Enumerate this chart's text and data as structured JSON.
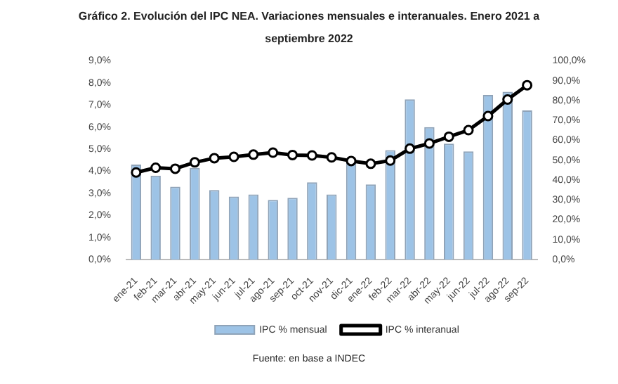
{
  "chart_data": {
    "type": "bar",
    "title": "Gráfico 2. Evolución del IPC NEA. Variaciones mensuales e interanuales. Enero 2021 a septiembre 2022",
    "categories": [
      "ene-21",
      "feb-21",
      "mar-21",
      "abr-21",
      "may-21",
      "jun-21",
      "jul-21",
      "ago-21",
      "sep-21",
      "oct-21",
      "nov-21",
      "dic-21",
      "ene-22",
      "feb-22",
      "mar-22",
      "abr-22",
      "may-22",
      "jun-22",
      "jul-22",
      "ago-22",
      "sep-22"
    ],
    "series": [
      {
        "name": "IPC % mensual",
        "color": "#9dc3e6",
        "values": [
          4.3,
          3.8,
          3.3,
          4.15,
          3.15,
          2.85,
          2.95,
          2.7,
          2.8,
          3.5,
          2.95,
          4.45,
          3.4,
          4.95,
          7.25,
          6.0,
          5.25,
          4.9,
          7.45,
          7.6,
          6.75
        ]
      },
      {
        "name": "IPC % interanual",
        "type": "line",
        "axis": "y2",
        "color": "#000000",
        "marker": "circle",
        "values": [
          43.8,
          46.2,
          45.7,
          48.9,
          51.0,
          51.7,
          52.8,
          53.8,
          52.6,
          52.4,
          51.4,
          49.6,
          48.2,
          49.8,
          55.8,
          58.4,
          61.8,
          65.1,
          72.2,
          80.5,
          87.7
        ]
      }
    ],
    "ylim": [
      0,
      9
    ],
    "yticks": [
      {
        "value": 0,
        "label": "0,0%"
      },
      {
        "value": 1,
        "label": "1,0%"
      },
      {
        "value": 2,
        "label": "2,0%"
      },
      {
        "value": 3,
        "label": "3,0%"
      },
      {
        "value": 4,
        "label": "4,0%"
      },
      {
        "value": 5,
        "label": "5,0%"
      },
      {
        "value": 6,
        "label": "6,0%"
      },
      {
        "value": 7,
        "label": "7,0%"
      },
      {
        "value": 8,
        "label": "8,0%"
      },
      {
        "value": 9,
        "label": "9,0%"
      }
    ],
    "y2lim": [
      0,
      100
    ],
    "y2ticks": [
      {
        "value": 0,
        "label": "0,0%"
      },
      {
        "value": 10,
        "label": "10,0%"
      },
      {
        "value": 20,
        "label": "20,0%"
      },
      {
        "value": 30,
        "label": "30,0%"
      },
      {
        "value": 40,
        "label": "40,0%"
      },
      {
        "value": 50,
        "label": "50,0%"
      },
      {
        "value": 60,
        "label": "60,0%"
      },
      {
        "value": 70,
        "label": "70,0%"
      },
      {
        "value": 80,
        "label": "80,0%"
      },
      {
        "value": 90,
        "label": "90,0%"
      },
      {
        "value": 100,
        "label": "100,0%"
      }
    ],
    "grid": false,
    "legend": "bottom",
    "annotations": [
      "Fuente: en base a INDEC"
    ]
  }
}
